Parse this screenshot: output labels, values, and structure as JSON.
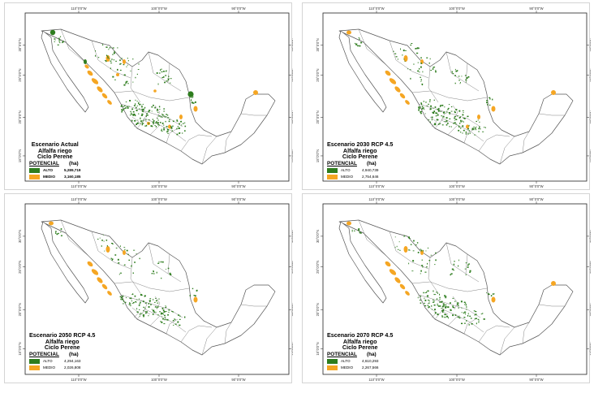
{
  "colors": {
    "alto": "#2e7d1e",
    "medio": "#f5a623",
    "outline": "#555555"
  },
  "ticks": {
    "top": [
      "110°0'0\"W",
      "100°0'0\"W",
      "90°0'0\"W"
    ],
    "bottom": [
      "110°0'0\"W",
      "100°0'0\"W",
      "90°0'0\"W"
    ],
    "left": [
      "30°0'0\"N",
      "25°0'0\"N",
      "20°0'0\"N",
      "15°0'0\"N"
    ],
    "right": [
      "30°0'0\"N",
      "25°0'0\"N",
      "20°0'0\"N",
      "15°0'0\"N"
    ]
  },
  "maps": [
    {
      "title1": "Escenario Actual",
      "title2": "Alfalfa riego",
      "title3": "Ciclo Perene",
      "potencial_label": "POTENCIAL",
      "unit_label": "(ha)",
      "alto_label": "ALTO",
      "alto_value": "5,289,719",
      "medio_label": "MEDIO",
      "medio_value": "3,160,185"
    },
    {
      "title1": "Escenario 2030 RCP 4.5",
      "title2": "Alfalfa riego",
      "title3": "Ciclo Perene",
      "potencial_label": "POTENCIAL",
      "unit_label": "(ha)",
      "alto_label": "ALTO",
      "alto_value": "4,940,739",
      "medio_label": "MEDIO",
      "medio_value": "2,754,646"
    },
    {
      "title1": "Escenario 2050 RCP 4.5",
      "title2": "Alfalfa riego",
      "title3": "Ciclo Perene",
      "potencial_label": "POTENCIAL",
      "unit_label": "(ha)",
      "alto_label": "ALTO",
      "alto_value": "4,294,163",
      "medio_label": "MEDIO",
      "medio_value": "2,026,808"
    },
    {
      "title1": "Escenario 2070 RCP 4.5",
      "title2": "Alfalfa riego",
      "title3": "Ciclo Perene",
      "potencial_label": "POTENCIAL",
      "unit_label": "(ha)",
      "alto_label": "ALTO",
      "alto_value": "4,610,293",
      "medio_label": "MEDIO",
      "medio_value": "2,267,566"
    }
  ]
}
